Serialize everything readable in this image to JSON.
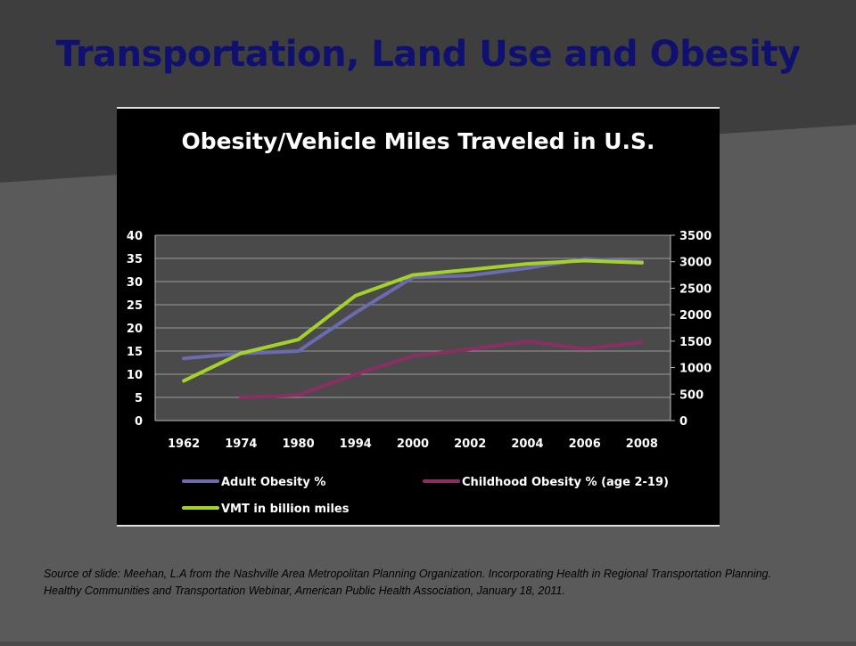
{
  "slide": {
    "title": "Transportation, Land Use and Obesity",
    "source": "Source of slide: Meehan, L.A from the Nashville Area Metropolitan Planning Organization. Incorporating Health in Regional Transportation Planning. Healthy Communities and Transportation Webinar, American Public Health Association, January 18, 2011."
  },
  "colors": {
    "title": "#101070",
    "adult": "#6b6bb0",
    "childhood": "#8a2e63",
    "vmt": "#a4d12a",
    "gridline": "#9a9a9a",
    "plot_bg": "#4a4a4a",
    "chart_bg": "#000000"
  },
  "chart_data": {
    "type": "line",
    "title": "Obesity/Vehicle Miles Traveled in U.S.",
    "categories": [
      "1962",
      "1974",
      "1980",
      "1994",
      "2000",
      "2002",
      "2004",
      "2006",
      "2008"
    ],
    "ylim": [
      0,
      40
    ],
    "y_ticks": [
      "0",
      "5",
      "10",
      "15",
      "20",
      "25",
      "30",
      "35",
      "40"
    ],
    "y2lim": [
      0,
      3500
    ],
    "y2_ticks": [
      "0",
      "500",
      "1000",
      "1500",
      "2000",
      "2500",
      "3000",
      "3500"
    ],
    "grid": true,
    "legend_position": "bottom",
    "series": [
      {
        "name": "Adult Obesity %",
        "axis": "left",
        "color_key": "adult",
        "values": [
          13.4,
          14.5,
          15,
          23.3,
          30.9,
          31.3,
          32.9,
          34.9,
          34.3
        ]
      },
      {
        "name": "Childhood Obesity % (age 2-19)",
        "axis": "left",
        "color_key": "childhood",
        "values": [
          null,
          5,
          5.5,
          10,
          13.9,
          15.4,
          17.1,
          15.5,
          16.9
        ]
      },
      {
        "name": "VMT in billion miles",
        "axis": "right",
        "color_key": "vmt",
        "values": [
          750,
          1270,
          1530,
          2360,
          2750,
          2850,
          2960,
          3020,
          2980
        ]
      }
    ]
  }
}
